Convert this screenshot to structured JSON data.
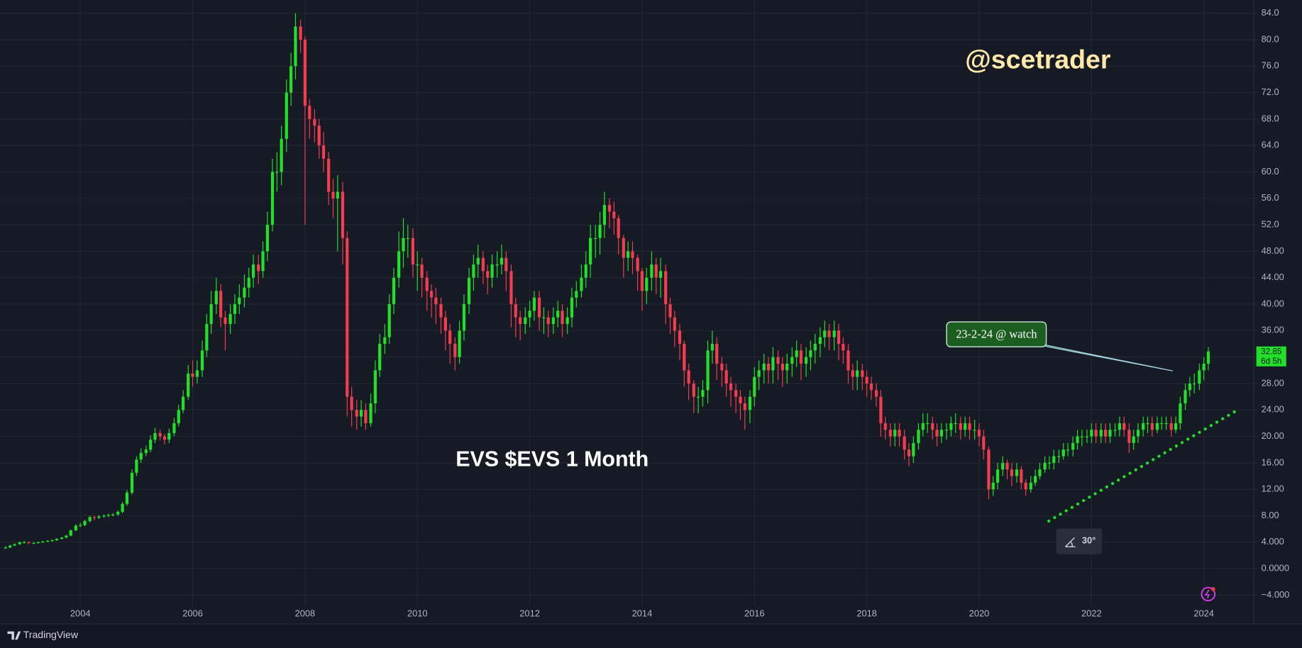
{
  "chart_data": {
    "type": "candlestick",
    "title": "EVS $EVS 1 Month",
    "watermark": "@scetrader",
    "countdown": "6d 5h",
    "up_color": "#22e02a",
    "down_color": "#f23d4f",
    "grid": true,
    "xlim": [
      2002.57,
      2024.89
    ],
    "xticks": [
      2004,
      2006,
      2008,
      2010,
      2012,
      2014,
      2016,
      2018,
      2020,
      2022,
      2024
    ],
    "ylim": [
      -5.6,
      86
    ],
    "yticks": [
      {
        "value": 84,
        "label": "84.0"
      },
      {
        "value": 80,
        "label": "80.0"
      },
      {
        "value": 76,
        "label": "76.0"
      },
      {
        "value": 72,
        "label": "72.0"
      },
      {
        "value": 68,
        "label": "68.0"
      },
      {
        "value": 64,
        "label": "64.0"
      },
      {
        "value": 60,
        "label": "60.0"
      },
      {
        "value": 56,
        "label": "56.0"
      },
      {
        "value": 52,
        "label": "52.0"
      },
      {
        "value": 48,
        "label": "48.00"
      },
      {
        "value": 44,
        "label": "44.00"
      },
      {
        "value": 40,
        "label": "40.00"
      },
      {
        "value": 36,
        "label": "36.00"
      },
      {
        "value": 32,
        "label": "32.00"
      },
      {
        "value": 28,
        "label": "28.00"
      },
      {
        "value": 24,
        "label": "24.00"
      },
      {
        "value": 20,
        "label": "20.00"
      },
      {
        "value": 16,
        "label": "16.00"
      },
      {
        "value": 12,
        "label": "12.00"
      },
      {
        "value": 8,
        "label": "8.00"
      },
      {
        "value": 4,
        "label": "4.000"
      },
      {
        "value": 0,
        "label": "0.0000"
      },
      {
        "value": -4,
        "label": "−4.000"
      }
    ],
    "annotations": [
      {
        "text": "23-2-24 @ watch",
        "x": 2023.45,
        "y": 29.9
      }
    ],
    "trendline": {
      "x": [
        2021.24,
        2024.62
      ],
      "y": [
        7.2,
        24.1
      ],
      "color": "#22e02a",
      "angle_label": "30°"
    },
    "x": [
      2002.67,
      2002.75,
      2002.83,
      2002.92,
      2003,
      2003.08,
      2003.17,
      2003.25,
      2003.33,
      2003.42,
      2003.5,
      2003.58,
      2003.67,
      2003.75,
      2003.83,
      2003.92,
      2004,
      2004.08,
      2004.17,
      2004.25,
      2004.33,
      2004.42,
      2004.5,
      2004.58,
      2004.67,
      2004.75,
      2004.83,
      2004.92,
      2005,
      2005.08,
      2005.17,
      2005.25,
      2005.33,
      2005.42,
      2005.5,
      2005.58,
      2005.67,
      2005.75,
      2005.83,
      2005.92,
      2006,
      2006.08,
      2006.17,
      2006.25,
      2006.33,
      2006.42,
      2006.5,
      2006.58,
      2006.67,
      2006.75,
      2006.83,
      2006.92,
      2007,
      2007.08,
      2007.17,
      2007.25,
      2007.33,
      2007.42,
      2007.5,
      2007.58,
      2007.67,
      2007.75,
      2007.83,
      2007.92,
      2008,
      2008.08,
      2008.17,
      2008.25,
      2008.33,
      2008.42,
      2008.5,
      2008.58,
      2008.67,
      2008.75,
      2008.83,
      2008.92,
      2009,
      2009.08,
      2009.17,
      2009.25,
      2009.33,
      2009.42,
      2009.5,
      2009.58,
      2009.67,
      2009.75,
      2009.83,
      2009.92,
      2010,
      2010.08,
      2010.17,
      2010.25,
      2010.33,
      2010.42,
      2010.5,
      2010.58,
      2010.67,
      2010.75,
      2010.83,
      2010.92,
      2011,
      2011.08,
      2011.17,
      2011.25,
      2011.33,
      2011.42,
      2011.5,
      2011.58,
      2011.67,
      2011.75,
      2011.83,
      2011.92,
      2012,
      2012.08,
      2012.17,
      2012.25,
      2012.33,
      2012.42,
      2012.5,
      2012.58,
      2012.67,
      2012.75,
      2012.83,
      2012.92,
      2013,
      2013.08,
      2013.17,
      2013.25,
      2013.33,
      2013.42,
      2013.5,
      2013.58,
      2013.67,
      2013.75,
      2013.83,
      2013.92,
      2014,
      2014.08,
      2014.17,
      2014.25,
      2014.33,
      2014.42,
      2014.5,
      2014.58,
      2014.67,
      2014.75,
      2014.83,
      2014.92,
      2015,
      2015.08,
      2015.17,
      2015.25,
      2015.33,
      2015.42,
      2015.5,
      2015.58,
      2015.67,
      2015.75,
      2015.83,
      2015.92,
      2016,
      2016.08,
      2016.17,
      2016.25,
      2016.33,
      2016.42,
      2016.5,
      2016.58,
      2016.67,
      2016.75,
      2016.83,
      2016.92,
      2017,
      2017.08,
      2017.17,
      2017.25,
      2017.33,
      2017.42,
      2017.5,
      2017.58,
      2017.67,
      2017.75,
      2017.83,
      2017.92,
      2018,
      2018.08,
      2018.17,
      2018.25,
      2018.33,
      2018.42,
      2018.5,
      2018.58,
      2018.67,
      2018.75,
      2018.83,
      2018.92,
      2019,
      2019.08,
      2019.17,
      2019.25,
      2019.33,
      2019.42,
      2019.5,
      2019.58,
      2019.67,
      2019.75,
      2019.83,
      2019.92,
      2020,
      2020.08,
      2020.17,
      2020.25,
      2020.33,
      2020.42,
      2020.5,
      2020.58,
      2020.67,
      2020.75,
      2020.83,
      2020.92,
      2021,
      2021.08,
      2021.17,
      2021.25,
      2021.33,
      2021.42,
      2021.5,
      2021.58,
      2021.67,
      2021.75,
      2021.83,
      2021.92,
      2022,
      2022.08,
      2022.17,
      2022.25,
      2022.33,
      2022.42,
      2022.5,
      2022.58,
      2022.67,
      2022.75,
      2022.83,
      2022.92,
      2023,
      2023.08,
      2023.17,
      2023.25,
      2023.33,
      2023.42,
      2023.5,
      2023.58,
      2023.67,
      2023.75,
      2023.83,
      2023.92,
      2024,
      2024.08
    ],
    "close": [
      3.2,
      3.5,
      3.7,
      4.0,
      4.0,
      3.9,
      3.9,
      4.0,
      4.1,
      4.2,
      4.3,
      4.5,
      4.7,
      5.0,
      5.8,
      6.5,
      6.6,
      7.2,
      7.8,
      7.7,
      7.9,
      8.0,
      8.1,
      8.2,
      8.6,
      9.8,
      11.5,
      14.5,
      16.5,
      17.5,
      18.0,
      19.5,
      20.5,
      20.0,
      19.5,
      20.5,
      22.0,
      24.0,
      26.0,
      29.5,
      29.0,
      30.0,
      33.0,
      37.0,
      40.0,
      42.0,
      38.0,
      37.0,
      38.5,
      40.0,
      41.0,
      42.5,
      44.0,
      46.0,
      45.0,
      48.0,
      52.0,
      60.0,
      60.0,
      65.0,
      72.0,
      76.0,
      82.0,
      80.0,
      70,
      68,
      67,
      64,
      62,
      57,
      56,
      57,
      50,
      26,
      24,
      23,
      24,
      22,
      25,
      30,
      34,
      35,
      40,
      44,
      48,
      50,
      50,
      46,
      46,
      44,
      42,
      41,
      40,
      38,
      36,
      34,
      32,
      36,
      40,
      44,
      46,
      47,
      45,
      44,
      46,
      46,
      47,
      45,
      40,
      38,
      37,
      38,
      39,
      41,
      38,
      38,
      37,
      38,
      39,
      37,
      38,
      41,
      42,
      44,
      46,
      50,
      50,
      52,
      55,
      54,
      53,
      50,
      47,
      48,
      47,
      45,
      42,
      44,
      46,
      44,
      45,
      40,
      38,
      36,
      34,
      30,
      28,
      26,
      26,
      27,
      33,
      34,
      31,
      30,
      28,
      27,
      26,
      25,
      24,
      26,
      29,
      30,
      31,
      30,
      32,
      31,
      30,
      31,
      32,
      33,
      31,
      32,
      33,
      34,
      35,
      36,
      35,
      36,
      34,
      33,
      30,
      29,
      30,
      29,
      28,
      27,
      26,
      22,
      21,
      20,
      21,
      20,
      18,
      17,
      19,
      21,
      22,
      22,
      21,
      20,
      21,
      21,
      22,
      22,
      21,
      22,
      21,
      21,
      20,
      18,
      12,
      13,
      15,
      16,
      15,
      14,
      15,
      13,
      12,
      13,
      14,
      15,
      16,
      16,
      17,
      17,
      18,
      18,
      19,
      20,
      20,
      20,
      21,
      20,
      21,
      20,
      21,
      21,
      22,
      21,
      19,
      20,
      21,
      22,
      22,
      21,
      22,
      22,
      22,
      21,
      22,
      25,
      27,
      28,
      28,
      30,
      31,
      32.85
    ],
    "high": [
      3.4,
      3.6,
      3.8,
      4.1,
      4.2,
      4.1,
      4.0,
      4.1,
      4.2,
      4.3,
      4.4,
      4.6,
      4.8,
      5.1,
      5.9,
      6.7,
      6.9,
      7.4,
      8.0,
      8.0,
      8.1,
      8.2,
      8.3,
      8.4,
      8.8,
      10.1,
      11.9,
      15.0,
      17.0,
      18.2,
      18.6,
      20.2,
      21.3,
      21.0,
      20.4,
      21.2,
      22.8,
      24.8,
      27.0,
      30.8,
      31.5,
      31.5,
      34.5,
      38.5,
      42.0,
      44.0,
      43.0,
      39.0,
      40.0,
      41.5,
      43.0,
      44.5,
      45.5,
      47.5,
      47.5,
      49.5,
      54.0,
      62.0,
      63.0,
      67.0,
      74.0,
      78.0,
      84.0,
      83.0,
      80.5,
      71.0,
      69.5,
      68.0,
      66.0,
      63.0,
      59.0,
      59.5,
      58.5,
      51.0,
      27.5,
      25.5,
      25.5,
      25.0,
      26.5,
      31.5,
      35.5,
      37.0,
      41.5,
      45.5,
      51.0,
      53.0,
      52.0,
      51.5,
      48.0,
      47.0,
      45.0,
      43.0,
      42.5,
      41.0,
      39.0,
      37.0,
      35.0,
      37.5,
      41.5,
      45.5,
      47.5,
      49.0,
      48.0,
      46.0,
      47.5,
      48.0,
      49.0,
      48.0,
      46.0,
      41.0,
      39.0,
      39.5,
      40.5,
      42.0,
      42.0,
      39.5,
      39.0,
      39.5,
      40.5,
      40.0,
      39.5,
      42.5,
      43.5,
      46.0,
      48.0,
      52.0,
      52.0,
      54.0,
      57.0,
      56.0,
      55.5,
      53.5,
      50.5,
      49.5,
      49.5,
      47.5,
      45.5,
      45.5,
      48.0,
      47.0,
      47.0,
      46.0,
      41.0,
      39.0,
      37.0,
      34.5,
      31.0,
      28.5,
      27.5,
      28.5,
      34.5,
      36.0,
      35.0,
      32.0,
      31.0,
      29.0,
      28.0,
      27.0,
      26.0,
      27.0,
      30.5,
      31.5,
      32.5,
      32.0,
      33.5,
      33.0,
      32.0,
      32.5,
      33.5,
      34.5,
      34.0,
      33.5,
      34.5,
      35.5,
      36.5,
      37.5,
      37.0,
      37.5,
      37.0,
      35.0,
      34.0,
      31.0,
      31.5,
      31.0,
      30.0,
      29.0,
      28.0,
      27.0,
      23.0,
      22.0,
      22.0,
      22.0,
      21.0,
      19.0,
      20.0,
      22.0,
      23.5,
      23.5,
      23.0,
      22.0,
      22.0,
      22.0,
      23.0,
      23.5,
      23.0,
      23.0,
      23.0,
      22.5,
      22.0,
      21.0,
      18.5,
      14.0,
      16.0,
      17.0,
      16.5,
      16.0,
      16.0,
      15.5,
      13.5,
      14.0,
      15.0,
      16.0,
      17.0,
      17.0,
      18.0,
      18.0,
      19.0,
      19.0,
      20.0,
      21.0,
      21.0,
      21.0,
      22.0,
      22.0,
      22.0,
      22.0,
      22.0,
      22.0,
      23.0,
      23.0,
      22.0,
      21.0,
      22.0,
      23.0,
      23.0,
      23.0,
      23.0,
      23.0,
      23.0,
      23.0,
      23.0,
      26.0,
      28.0,
      29.0,
      29.5,
      31.0,
      32.0,
      33.5
    ],
    "low": [
      3.0,
      3.1,
      3.4,
      3.6,
      3.8,
      3.7,
      3.7,
      3.8,
      3.9,
      4.0,
      4.1,
      4.2,
      4.4,
      4.6,
      4.9,
      5.7,
      6.3,
      6.4,
      7.0,
      7.3,
      7.5,
      7.7,
      7.8,
      7.9,
      8.0,
      8.4,
      9.5,
      11.2,
      14.0,
      16.0,
      17.0,
      17.6,
      19.0,
      19.4,
      18.8,
      19.0,
      20.0,
      21.5,
      23.5,
      25.5,
      27.5,
      28.0,
      29.0,
      32.0,
      35.5,
      38.5,
      36.5,
      33.0,
      35.5,
      37.0,
      38.5,
      39.5,
      41.0,
      42.5,
      43.0,
      44.0,
      46.5,
      51.0,
      57.0,
      58.0,
      63.0,
      70.0,
      74.0,
      78.0,
      52.0,
      65.0,
      64.5,
      62.0,
      60.0,
      55.0,
      53.0,
      48.0,
      46.0,
      23.0,
      21.5,
      21.0,
      21.5,
      21.0,
      21.5,
      23.5,
      29.0,
      32.5,
      34.0,
      38.5,
      42.5,
      45.5,
      47.0,
      44.0,
      42.0,
      41.0,
      39.0,
      38.0,
      37.0,
      35.5,
      33.0,
      31.0,
      30.0,
      31.0,
      34.5,
      38.5,
      42.0,
      44.0,
      43.0,
      41.5,
      42.5,
      44.0,
      44.5,
      42.0,
      36.5,
      35.0,
      34.5,
      35.5,
      36.5,
      37.5,
      36.0,
      35.5,
      35.0,
      35.5,
      36.5,
      35.0,
      35.5,
      36.5,
      39.5,
      41.0,
      42.5,
      44.0,
      47.0,
      47.5,
      50.0,
      51.5,
      50.5,
      47.5,
      44.0,
      45.0,
      44.5,
      42.0,
      39.0,
      40.0,
      42.0,
      41.5,
      41.0,
      37.0,
      35.5,
      33.5,
      31.5,
      27.5,
      25.5,
      23.5,
      23.5,
      24.5,
      25.0,
      31.0,
      28.5,
      27.5,
      26.0,
      24.5,
      23.5,
      22.5,
      21.0,
      22.0,
      24.5,
      27.0,
      28.0,
      28.0,
      28.0,
      28.5,
      27.5,
      28.0,
      29.0,
      30.5,
      28.5,
      29.0,
      30.0,
      31.0,
      32.0,
      33.5,
      33.0,
      33.0,
      31.5,
      31.0,
      28.0,
      27.0,
      27.0,
      27.0,
      26.0,
      25.5,
      24.5,
      20.0,
      19.5,
      18.5,
      18.5,
      18.5,
      16.5,
      15.5,
      16.0,
      18.0,
      20.0,
      20.5,
      19.5,
      18.5,
      19.0,
      19.5,
      20.0,
      20.5,
      19.5,
      20.0,
      19.5,
      19.5,
      18.5,
      16.5,
      10.5,
      11.0,
      12.0,
      14.0,
      13.5,
      12.5,
      13.0,
      12.0,
      11.0,
      11.5,
      12.5,
      13.5,
      14.5,
      15.0,
      15.0,
      16.0,
      16.5,
      17.0,
      17.0,
      18.0,
      18.5,
      19.0,
      19.0,
      19.0,
      19.0,
      19.0,
      19.0,
      20.0,
      20.0,
      20.0,
      17.5,
      18.0,
      19.0,
      20.0,
      20.5,
      20.0,
      20.5,
      21.0,
      21.0,
      20.0,
      20.5,
      21.0,
      24.0,
      26.0,
      26.5,
      27.0,
      28.5,
      30.0
    ]
  },
  "footer": {
    "brand": "TradingView"
  }
}
